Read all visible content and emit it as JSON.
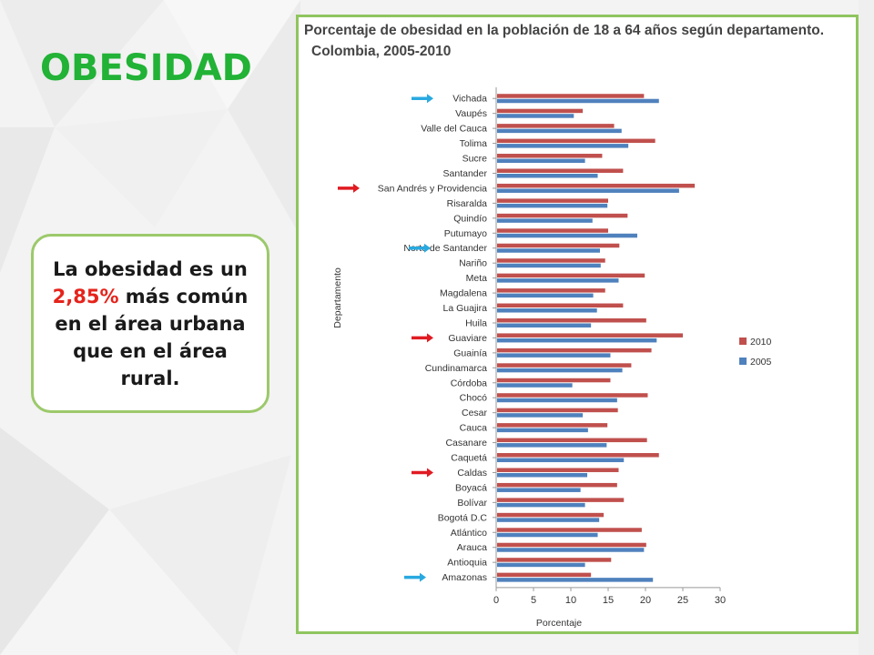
{
  "slide": {
    "title": "OBESIDAD",
    "note_part1": "La obesidad es un ",
    "note_highlight": "2,85%",
    "note_part2": " más común en el área urbana que en el área rural.",
    "colors": {
      "title": "#21b236",
      "highlight": "#e5231b",
      "frame": "#8fc55f"
    }
  },
  "chart_data": {
    "type": "bar",
    "orientation": "horizontal",
    "title_line1": "Porcentaje de obesidad en la población de 18 a 64 años según departamento.",
    "title_line2": "Colombia, 2005-2010",
    "xlabel": "Porcentaje",
    "ylabel": "Departamento",
    "xlim": [
      0,
      30
    ],
    "xticks": [
      "0",
      "5",
      "10",
      "15",
      "20",
      "25",
      "30"
    ],
    "legend_position": "right",
    "categories": [
      "Vichada",
      "Vaupés",
      "Valle del Cauca",
      "Tolima",
      "Sucre",
      "Santander",
      "San Andrés y Providencia",
      "Risaralda",
      "Quindío",
      "Putumayo",
      "Norte de Santander",
      "Nariño",
      "Meta",
      "Magdalena",
      "La Guajira",
      "Huila",
      "Guaviare",
      "Guainía",
      "Cundinamarca",
      "Córdoba",
      "Chocó",
      "Cesar",
      "Cauca",
      "Casanare",
      "Caquetá",
      "Caldas",
      "Boyacá",
      "Bolívar",
      "Bogotá D.C",
      "Atlántico",
      "Arauca",
      "Antioquia",
      "Amazonas"
    ],
    "series": [
      {
        "name": "2010",
        "color": "#c0504d",
        "values": [
          19.8,
          11.6,
          15.8,
          21.3,
          14.2,
          17.0,
          26.6,
          15.0,
          17.6,
          15.0,
          16.5,
          14.6,
          19.9,
          14.6,
          17.0,
          20.1,
          25.0,
          20.8,
          18.1,
          15.3,
          20.3,
          16.3,
          14.9,
          20.2,
          21.8,
          16.4,
          16.2,
          17.1,
          14.4,
          19.5,
          20.1,
          15.4,
          12.7
        ]
      },
      {
        "name": "2005",
        "color": "#4f81bd",
        "values": [
          21.8,
          10.4,
          16.8,
          17.7,
          11.9,
          13.6,
          24.5,
          14.9,
          12.9,
          18.9,
          13.9,
          14.0,
          16.4,
          13.0,
          13.5,
          12.7,
          21.5,
          15.3,
          16.9,
          10.2,
          16.2,
          11.6,
          12.3,
          14.8,
          17.1,
          12.2,
          11.3,
          11.9,
          13.8,
          13.6,
          19.8,
          11.9,
          21.0
        ]
      }
    ],
    "markers": [
      {
        "category": "Vichada",
        "color": "#29a9e0"
      },
      {
        "category": "San Andrés y Providencia",
        "color": "#e01b22"
      },
      {
        "category": "Norte de Santander",
        "color": "#29a9e0"
      },
      {
        "category": "Guaviare",
        "color": "#e01b22"
      },
      {
        "category": "Caldas",
        "color": "#e01b22"
      },
      {
        "category": "Amazonas",
        "color": "#29a9e0"
      }
    ]
  }
}
